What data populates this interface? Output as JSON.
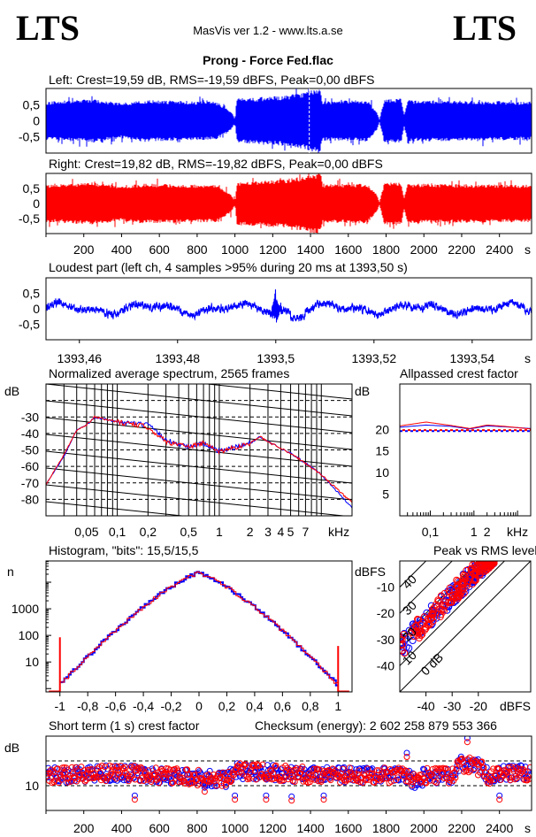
{
  "header": {
    "logo_left": "LTS",
    "logo_right": "LTS",
    "app_title": "MasVis ver 1.2 - www.lts.a.se",
    "file_title": "Prong - Force Fed.flac"
  },
  "colors": {
    "left": "#0000ff",
    "right": "#ff0000",
    "marker": "#ffffff"
  },
  "chart_data": [
    {
      "id": "left-waveform",
      "type": "area",
      "title": "Left: Crest=19,59 dB, RMS=-19,59 dBFS, Peak=0,00 dBFS",
      "xlim": [
        0,
        2570
      ],
      "ylim": [
        -1.01,
        1.01
      ],
      "yticks": [
        {
          "v": 0.5,
          "label": "0,5"
        },
        {
          "v": 0,
          "label": "0"
        },
        {
          "v": -0.5,
          "label": "-0,5"
        }
      ],
      "marker_time": 1393.5,
      "envelope_t": [
        0,
        250,
        400,
        500,
        900,
        980,
        1000,
        1010,
        1250,
        1380,
        1400,
        1450,
        1465,
        1700,
        1750,
        1765,
        1790,
        1880,
        1895,
        1915,
        2565
      ],
      "envelope_amp": [
        0.6,
        0.68,
        0.55,
        0.65,
        0.6,
        0.3,
        0.05,
        0.7,
        0.78,
        0.9,
        1.0,
        1.0,
        0.62,
        0.65,
        0.3,
        0.05,
        0.68,
        0.7,
        0.2,
        0.65,
        0.6
      ]
    },
    {
      "id": "right-waveform",
      "type": "area",
      "title": "Right: Crest=19,82 dB, RMS=-19,82 dBFS, Peak=0,00 dBFS",
      "xlim": [
        0,
        2570
      ],
      "ylim": [
        -1.0,
        1.0
      ],
      "yticks": [
        {
          "v": 0.5,
          "label": "0,5"
        },
        {
          "v": 0,
          "label": "0"
        },
        {
          "v": -0.5,
          "label": "-0,5"
        }
      ],
      "xticks": [
        {
          "v": 200,
          "label": "200"
        },
        {
          "v": 400,
          "label": "400"
        },
        {
          "v": 600,
          "label": "600"
        },
        {
          "v": 800,
          "label": "800"
        },
        {
          "v": 1000,
          "label": "1000"
        },
        {
          "v": 1200,
          "label": "1200"
        },
        {
          "v": 1400,
          "label": "1400"
        },
        {
          "v": 1600,
          "label": "1600"
        },
        {
          "v": 1800,
          "label": "1800"
        },
        {
          "v": 2000,
          "label": "2000"
        },
        {
          "v": 2200,
          "label": "2200"
        },
        {
          "v": 2400,
          "label": "2400"
        }
      ],
      "xunit": "s",
      "envelope_t": [
        0,
        250,
        400,
        500,
        900,
        980,
        1000,
        1010,
        1250,
        1380,
        1400,
        1450,
        1465,
        1700,
        1750,
        1765,
        1790,
        1880,
        1895,
        1915,
        2565
      ],
      "envelope_amp": [
        0.62,
        0.7,
        0.58,
        0.66,
        0.62,
        0.3,
        0.05,
        0.72,
        0.8,
        0.92,
        1.0,
        1.0,
        0.64,
        0.66,
        0.3,
        0.05,
        0.7,
        0.72,
        0.2,
        0.66,
        0.62
      ]
    },
    {
      "id": "loudest-part",
      "type": "line",
      "title": "Loudest part (left  ch, 4 samples >95% during 20 ms at 1393,50 s)",
      "xlim": [
        1393.4532,
        1393.5521
      ],
      "ylim": [
        -1.01,
        1.01
      ],
      "yticks": [
        {
          "v": 0.5,
          "label": "0,5"
        },
        {
          "v": 0,
          "label": "0"
        },
        {
          "v": -0.5,
          "label": "-0,5"
        }
      ],
      "xticks": [
        {
          "v": 1393.46,
          "label": "1393,46"
        },
        {
          "v": 1393.48,
          "label": "1393,48"
        },
        {
          "v": 1393.5,
          "label": "1393,5"
        },
        {
          "v": 1393.52,
          "label": "1393,52"
        },
        {
          "v": 1393.54,
          "label": "1393,54"
        }
      ],
      "xunit": "s",
      "spike": {
        "t": 1393.5,
        "peak": 1.0,
        "trough": -0.45
      }
    },
    {
      "id": "spectrum",
      "type": "line",
      "title": "Normalized average spectrum, 2565 frames",
      "ylabel": "dB",
      "xunit": "kHz",
      "xscale": "log",
      "xlim": [
        0.02,
        20
      ],
      "ylim": [
        -90,
        -10
      ],
      "yticks": [
        {
          "v": -30,
          "label": "-30"
        },
        {
          "v": -40,
          "label": "-40"
        },
        {
          "v": -50,
          "label": "-50"
        },
        {
          "v": -60,
          "label": "-60"
        },
        {
          "v": -70,
          "label": "-70"
        },
        {
          "v": -80,
          "label": "-80"
        }
      ],
      "xticks": [
        {
          "v": 0.05,
          "label": "0,05"
        },
        {
          "v": 0.1,
          "label": "0,1"
        },
        {
          "v": 0.2,
          "label": "0,2"
        },
        {
          "v": 0.5,
          "label": "0,5"
        },
        {
          "v": 1,
          "label": "1"
        },
        {
          "v": 2,
          "label": "2"
        },
        {
          "v": 3,
          "label": "3"
        },
        {
          "v": 4,
          "label": "4"
        },
        {
          "v": 5,
          "label": "5"
        },
        {
          "v": 7,
          "label": "7"
        }
      ],
      "series": [
        {
          "name": "Left",
          "freq_khz": [
            0.02,
            0.03,
            0.04,
            0.05,
            0.06,
            0.1,
            0.2,
            0.3,
            0.5,
            0.7,
            1,
            2,
            2.5,
            3,
            5,
            7,
            10,
            20
          ],
          "db": [
            -71,
            -54,
            -38,
            -35,
            -30,
            -33,
            -35,
            -44,
            -48,
            -46,
            -51,
            -46,
            -42,
            -45,
            -52,
            -58,
            -65,
            -85
          ]
        },
        {
          "name": "Right",
          "freq_khz": [
            0.02,
            0.03,
            0.04,
            0.05,
            0.06,
            0.1,
            0.2,
            0.3,
            0.5,
            0.7,
            1,
            2,
            2.5,
            3,
            5,
            7,
            10,
            20
          ],
          "db": [
            -71,
            -53,
            -38,
            -35,
            -30,
            -33,
            -36,
            -45,
            -48,
            -46,
            -51,
            -46,
            -42,
            -45,
            -52,
            -58,
            -65,
            -82
          ]
        }
      ]
    },
    {
      "id": "allpassed-crest",
      "type": "line",
      "title": "Allpassed crest factor",
      "ylabel": "dB",
      "xunit": "kHz",
      "xscale": "log",
      "xlim": [
        0.02,
        20
      ],
      "ylim": [
        0,
        30.5
      ],
      "yticks": [
        {
          "v": 5,
          "label": "5"
        },
        {
          "v": 10,
          "label": "10"
        },
        {
          "v": 15,
          "label": "15"
        },
        {
          "v": 20,
          "label": "20"
        }
      ],
      "xticks": [
        {
          "v": 0.1,
          "label": "0,1"
        },
        {
          "v": 1,
          "label": "1"
        },
        {
          "v": 2,
          "label": "2"
        }
      ],
      "series": [
        {
          "name": "Left",
          "freq_khz": [
            0.02,
            0.08,
            0.3,
            0.8,
            2,
            5,
            20
          ],
          "db": [
            20.5,
            21.0,
            20.7,
            20.1,
            20.8,
            20.6,
            20.2
          ],
          "overall_db": 19.59
        },
        {
          "name": "Right",
          "freq_khz": [
            0.02,
            0.08,
            0.3,
            0.8,
            2,
            5,
            20
          ],
          "db": [
            20.8,
            21.7,
            20.9,
            20.2,
            21.0,
            20.7,
            20.1
          ],
          "overall_db": 19.82
        }
      ]
    },
    {
      "id": "histogram",
      "type": "bar",
      "title": "Histogram, \"bits\": 15,5/15,5",
      "ylabel": "n",
      "yscale": "log",
      "xlim": [
        -1.1,
        1.1
      ],
      "ylim": [
        0.75,
        63000
      ],
      "yticks": [
        {
          "v": 10,
          "label": "10"
        },
        {
          "v": 100,
          "label": "100"
        },
        {
          "v": 1000,
          "label": "1000"
        }
      ],
      "xticks": [
        {
          "v": -1,
          "label": "-1"
        },
        {
          "v": -0.8,
          "label": "-0,8"
        },
        {
          "v": -0.6,
          "label": "-0,6"
        },
        {
          "v": -0.4,
          "label": "-0,4"
        },
        {
          "v": -0.2,
          "label": "-0,2"
        },
        {
          "v": 0,
          "label": "0"
        },
        {
          "v": 0.2,
          "label": "0,2"
        },
        {
          "v": 0.4,
          "label": "0,4"
        },
        {
          "v": 0.6,
          "label": "0,6"
        },
        {
          "v": 0.8,
          "label": "0,8"
        },
        {
          "v": 1,
          "label": "1"
        }
      ],
      "peak_count": 22000,
      "clip_counts": {
        "minus_one": 85,
        "plus_one": 40
      }
    },
    {
      "id": "peak-vs-rms",
      "type": "scatter",
      "title": "Peak vs RMS level",
      "ylabel": "dBFS",
      "xlabel": "dBFS",
      "xlim": [
        -50,
        0
      ],
      "ylim": [
        -50,
        0
      ],
      "xticks": [
        {
          "v": -40,
          "label": "-40"
        },
        {
          "v": -30,
          "label": "-30"
        },
        {
          "v": -20,
          "label": "-20"
        }
      ],
      "yticks": [
        {
          "v": -10,
          "label": "-10"
        },
        {
          "v": -20,
          "label": "-20"
        },
        {
          "v": -30,
          "label": "-30"
        },
        {
          "v": -40,
          "label": "-40"
        }
      ],
      "crest_lines": [
        {
          "db": 0,
          "label": "0 dB"
        },
        {
          "db": 10,
          "label": "10"
        },
        {
          "db": 20,
          "label": "20"
        },
        {
          "db": 30,
          "label": "30"
        },
        {
          "db": 40,
          "label": "40"
        }
      ],
      "crest_range_db": [
        13,
        21
      ]
    },
    {
      "id": "short-term-crest",
      "type": "scatter",
      "title": "Short term (1 s) crest factor",
      "checksum": "Checksum (energy):  2 602 258 879 553 366",
      "ylabel": "dB",
      "xunit": "s",
      "xlim": [
        0,
        2570
      ],
      "ylim": [
        5,
        20
      ],
      "yticks": [
        {
          "v": 10,
          "label": "10"
        }
      ],
      "dashed_levels": [
        10,
        15
      ],
      "xticks": [
        {
          "v": 200,
          "label": "200"
        },
        {
          "v": 400,
          "label": "400"
        },
        {
          "v": 600,
          "label": "600"
        },
        {
          "v": 800,
          "label": "800"
        },
        {
          "v": 1000,
          "label": "1000"
        },
        {
          "v": 1200,
          "label": "1200"
        },
        {
          "v": 1400,
          "label": "1400"
        },
        {
          "v": 1600,
          "label": "1600"
        },
        {
          "v": 1800,
          "label": "1800"
        },
        {
          "v": 2000,
          "label": "2000"
        },
        {
          "v": 2200,
          "label": "2200"
        },
        {
          "v": 2400,
          "label": "2400"
        }
      ],
      "mean_profile_t": [
        0,
        400,
        800,
        950,
        1000,
        1400,
        1900,
        1980,
        2000,
        2150,
        2200,
        2300,
        2350,
        2420,
        2565
      ],
      "mean_profile_db": [
        12,
        12.6,
        11.6,
        11.1,
        13,
        12.2,
        12,
        10.6,
        12,
        12,
        14.5,
        13.6,
        11.6,
        12.6,
        12.6
      ],
      "outliers": [
        {
          "t": 470,
          "db": 7.6
        },
        {
          "t": 840,
          "db": 9.2
        },
        {
          "t": 1000,
          "db": 7.6
        },
        {
          "t": 1165,
          "db": 7.6
        },
        {
          "t": 1300,
          "db": 7.4
        },
        {
          "t": 1470,
          "db": 7.6
        },
        {
          "t": 2400,
          "db": 7.6
        },
        {
          "t": 2230,
          "db": 19.2
        },
        {
          "t": 1910,
          "db": 16.2
        }
      ]
    }
  ]
}
